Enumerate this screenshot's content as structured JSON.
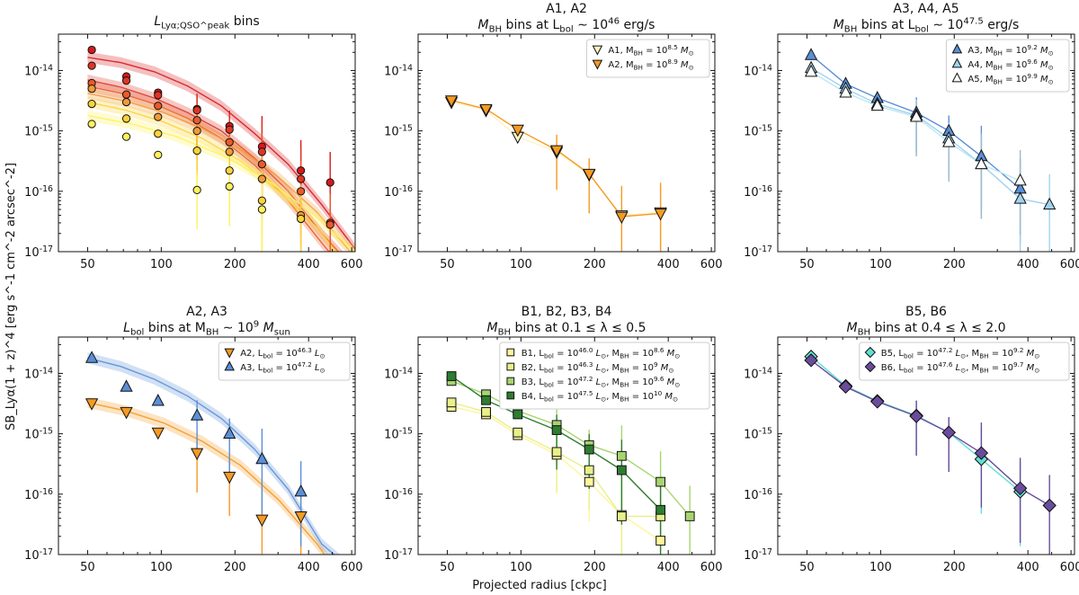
{
  "figure": {
    "ylabel": "SB_Lyα(1 + z)^4 [erg s^-1 cm^-2 arcsec^-2]",
    "xlabel": "Projected radius [ckpc]"
  },
  "chart_data": [
    {
      "type": "line",
      "title": [
        "L_Lyα;QSO^peak bins"
      ],
      "xscale": "log",
      "yscale": "log",
      "xlim": [
        38,
        620
      ],
      "ylim": [
        1e-17,
        4e-14
      ],
      "xticks": [
        "50",
        "100",
        "200",
        "400",
        "600"
      ],
      "yticks": [
        "10^-17",
        "10^-16",
        "10^-15",
        "10^-14"
      ],
      "legend": [],
      "series": [
        {
          "color": "#d7191c",
          "marker": "circle",
          "x": [
            52,
            72,
            97,
            140,
            190,
            258,
            372,
            490
          ],
          "y": [
            2.2e-14,
            8e-15,
            4.3e-15,
            2.3e-15,
            1.2e-15,
            5.5e-16,
            2.2e-16,
            1.4e-16
          ],
          "model": [
            1.65e-14,
            1.35e-14,
            9.5e-15,
            5.5e-15,
            2.6e-15,
            9e-16,
            2.8e-16,
            6e-17,
            1.1e-17
          ]
        },
        {
          "color": "#e03524",
          "marker": "circle",
          "x": [
            52,
            72,
            97,
            140,
            190,
            258,
            372,
            490
          ],
          "y": [
            1.2e-14,
            6.8e-15,
            3.9e-15,
            2.2e-15,
            1.05e-15,
            4.5e-16,
            1.6e-16,
            3e-17
          ],
          "model": [
            7e-15,
            5.3e-15,
            3.5e-15,
            2e-15,
            1e-15,
            3.5e-16,
            1e-16,
            2e-17,
            5e-18
          ]
        },
        {
          "color": "#ea5a2a",
          "marker": "circle",
          "x": [
            52,
            72,
            97,
            140,
            190,
            258,
            372,
            490
          ],
          "y": [
            6.2e-15,
            4e-15,
            2.6e-15,
            1.5e-15,
            6.5e-16,
            2.8e-16,
            1e-16,
            2.8e-17
          ],
          "model": [
            5.5e-15,
            4.2e-15,
            2.8e-15,
            1.6e-15,
            7.5e-16,
            2.7e-16,
            7e-17,
            1.4e-17,
            3e-18
          ]
        },
        {
          "color": "#f29a3a",
          "marker": "circle",
          "x": [
            52,
            72,
            97,
            140,
            190,
            258,
            372
          ],
          "y": [
            5e-15,
            3e-15,
            1.7e-15,
            1e-15,
            4.5e-16,
            1.6e-16,
            4e-17
          ],
          "model": [
            4.2e-15,
            3.1e-15,
            2e-15,
            1.1e-15,
            5e-16,
            1.7e-16,
            4.5e-17,
            8e-18
          ]
        },
        {
          "color": "#fcd33a",
          "marker": "circle",
          "x": [
            52,
            72,
            97,
            140,
            190,
            258,
            372
          ],
          "y": [
            2.8e-15,
            1.6e-15,
            9e-16,
            4.7e-16,
            2.2e-16,
            7e-17,
            3.5e-17
          ],
          "model": [
            3e-15,
            2.2e-15,
            1.4e-15,
            7.5e-16,
            3.2e-16,
            1e-16,
            2.5e-17,
            4e-18
          ]
        },
        {
          "color": "#fff25a",
          "marker": "circle",
          "x": [
            52,
            72,
            97,
            140,
            190,
            258
          ],
          "y": [
            1.3e-15,
            8e-16,
            4e-16,
            1.05e-16,
            1.2e-16,
            5e-17
          ],
          "model": [
            1.8e-15,
            1.3e-15,
            8e-16,
            4e-16,
            1.6e-16,
            4.5e-17,
            1e-17
          ]
        }
      ]
    },
    {
      "type": "line",
      "title": [
        "A1, A2",
        "M_BH bins at L_bol ~ 10^46 erg/s"
      ],
      "xscale": "log",
      "yscale": "log",
      "xlim": [
        38,
        620
      ],
      "ylim": [
        1e-17,
        4e-14
      ],
      "xticks": [
        "50",
        "100",
        "200",
        "400",
        "600"
      ],
      "yticks": [
        "10^-17",
        "10^-16",
        "10^-15",
        "10^-14"
      ],
      "legend": [
        {
          "label": "A1, M_BH = 10^8.5 M_⊙",
          "color": "#fff3c4",
          "marker": "triangle-down"
        },
        {
          "label": "A2, M_BH = 10^8.9 M_⊙",
          "color": "#f59a23",
          "marker": "triangle-down"
        }
      ],
      "series": [
        {
          "color": "#fff3c4",
          "marker": "triangle-down",
          "x": [
            52,
            72,
            97,
            140,
            190,
            258,
            372
          ],
          "y": [
            3e-15,
            2.2e-15,
            8e-16,
            4.5e-16,
            1.9e-16,
            4e-17,
            4.5e-17
          ]
        },
        {
          "color": "#f59a23",
          "marker": "triangle-down",
          "x": [
            52,
            72,
            97,
            140,
            190,
            258,
            372
          ],
          "y": [
            3.2e-15,
            2.3e-15,
            1.05e-15,
            4.8e-16,
            1.95e-16,
            3.8e-17,
            4.3e-17
          ]
        }
      ]
    },
    {
      "type": "line",
      "title": [
        "A3, A4, A5",
        "M_BH bins at L_bol ~ 10^47.5 erg/s"
      ],
      "xscale": "log",
      "yscale": "log",
      "xlim": [
        38,
        620
      ],
      "ylim": [
        1e-17,
        4e-14
      ],
      "xticks": [
        "50",
        "100",
        "200",
        "400",
        "600"
      ],
      "yticks": [
        "10^-17",
        "10^-16",
        "10^-15",
        "10^-14"
      ],
      "legend": [
        {
          "label": "A3, M_BH = 10^9.2 M_⊙",
          "color": "#5b8fd6",
          "marker": "triangle"
        },
        {
          "label": "A4, M_BH = 10^9.6 M_⊙",
          "color": "#9fd3ee",
          "marker": "triangle"
        },
        {
          "label": "A5, M_BH = 10^9.9 M_⊙",
          "color": "#ffffff",
          "marker": "triangle"
        }
      ],
      "series": [
        {
          "color": "#5b8fd6",
          "marker": "triangle",
          "x": [
            52,
            72,
            97,
            140,
            190,
            258,
            372
          ],
          "y": [
            1.8e-14,
            6e-15,
            3.5e-15,
            2e-15,
            1e-15,
            3.8e-16,
            1.1e-16
          ]
        },
        {
          "color": "#9fd3ee",
          "marker": "triangle",
          "x": [
            52,
            72,
            97,
            140,
            190,
            258,
            372,
            490
          ],
          "y": [
            1.1e-14,
            5e-15,
            2.8e-15,
            1.8e-15,
            7.5e-16,
            2.8e-16,
            7.5e-17,
            6e-17
          ]
        },
        {
          "color": "#ffffff",
          "marker": "triangle",
          "x": [
            52,
            72,
            97,
            140,
            190,
            258,
            372
          ],
          "y": [
            9.5e-15,
            4.3e-15,
            2.6e-15,
            1.7e-15,
            6.5e-16,
            2.8e-16,
            1.5e-16
          ]
        }
      ]
    },
    {
      "type": "line",
      "title": [
        "A2, A3",
        "L_bol bins at M_BH ~ 10^9 M_sun"
      ],
      "xscale": "log",
      "yscale": "log",
      "xlim": [
        38,
        620
      ],
      "ylim": [
        1e-17,
        4e-14
      ],
      "xticks": [
        "50",
        "100",
        "200",
        "400",
        "600"
      ],
      "yticks": [
        "10^-17",
        "10^-16",
        "10^-15",
        "10^-14"
      ],
      "legend": [
        {
          "label": "A2, L_bol = 10^46.3 L_⊙",
          "color": "#f59a23",
          "marker": "triangle-down"
        },
        {
          "label": "A3, L_bol = 10^47.2 L_⊙",
          "color": "#5b8fd6",
          "marker": "triangle"
        }
      ],
      "series": [
        {
          "color": "#f59a23",
          "marker": "triangle-down",
          "x": [
            52,
            72,
            97,
            140,
            190,
            258,
            372
          ],
          "y": [
            3.2e-15,
            2.3e-15,
            1.05e-15,
            4.8e-16,
            1.95e-16,
            3.8e-17,
            4.3e-17
          ],
          "model": [
            3.3e-15,
            2.4e-15,
            1.5e-15,
            7.5e-16,
            3e-16,
            8e-17,
            1.5e-17,
            2e-18
          ]
        },
        {
          "color": "#5b8fd6",
          "marker": "triangle",
          "x": [
            52,
            72,
            97,
            140,
            190,
            258,
            372
          ],
          "y": [
            1.8e-14,
            6e-15,
            3.5e-15,
            2e-15,
            1e-15,
            3.8e-16,
            1.1e-16
          ],
          "model": [
            1.8e-14,
            1.3e-14,
            8e-15,
            4.2e-15,
            1.8e-15,
            5.5e-16,
            1.2e-16,
            1.5e-17,
            5e-18
          ]
        }
      ]
    },
    {
      "type": "line",
      "title": [
        "B1, B2, B3, B4",
        "M_BH bins at 0.1 ≤ λ ≤ 0.5"
      ],
      "xscale": "log",
      "yscale": "log",
      "xlim": [
        38,
        620
      ],
      "ylim": [
        1e-17,
        4e-14
      ],
      "xticks": [
        "50",
        "100",
        "200",
        "400",
        "600"
      ],
      "yticks": [
        "10^-17",
        "10^-16",
        "10^-15",
        "10^-14"
      ],
      "legend": [
        {
          "label": "B1, L_bol = 10^46.0 L_⊙, M_BH = 10^8.6 M_⊙",
          "color": "#fff59a",
          "marker": "square"
        },
        {
          "label": "B2, L_bol = 10^46.3 L_⊙, M_BH = 10^9 M_⊙",
          "color": "#e8f08a",
          "marker": "square"
        },
        {
          "label": "B3, L_bol = 10^47.2 L_⊙, M_BH = 10^9.6 M_⊙",
          "color": "#a8d46f",
          "marker": "square"
        },
        {
          "label": "B4, L_bol = 10^47.5 L_⊙, M_BH = 10^10 M_⊙",
          "color": "#2e7d32",
          "marker": "square"
        }
      ],
      "series": [
        {
          "color": "#fff59a",
          "marker": "square",
          "x": [
            52,
            72,
            97,
            140,
            190,
            258,
            372
          ],
          "y": [
            2.8e-15,
            2.1e-15,
            9.5e-16,
            4.5e-16,
            1.6e-16,
            4.5e-17,
            1.7e-17
          ]
        },
        {
          "color": "#e8f08a",
          "marker": "square",
          "x": [
            52,
            72,
            97,
            140,
            190,
            258,
            372
          ],
          "y": [
            3.3e-15,
            2.3e-15,
            1.05e-15,
            5e-16,
            2.5e-16,
            4.3e-17,
            4.3e-17
          ]
        },
        {
          "color": "#a8d46f",
          "marker": "square",
          "x": [
            52,
            72,
            97,
            140,
            190,
            258,
            372,
            490
          ],
          "y": [
            7.5e-15,
            4.5e-15,
            2.4e-15,
            1.4e-15,
            6.5e-16,
            4.3e-16,
            1.6e-16,
            4.3e-17
          ]
        },
        {
          "color": "#2e7d32",
          "marker": "square",
          "x": [
            52,
            72,
            97,
            140,
            190,
            258,
            372
          ],
          "y": [
            9e-15,
            3.6e-15,
            2.1e-15,
            1.15e-15,
            5.5e-16,
            2.5e-16,
            5.5e-17
          ]
        }
      ]
    },
    {
      "type": "line",
      "title": [
        "B5, B6",
        "M_BH bins at 0.4 ≤ λ ≤ 2.0"
      ],
      "xscale": "log",
      "yscale": "log",
      "xlim": [
        38,
        620
      ],
      "ylim": [
        1e-17,
        4e-14
      ],
      "xticks": [
        "50",
        "100",
        "200",
        "400",
        "600"
      ],
      "yticks": [
        "10^-17",
        "10^-16",
        "10^-15",
        "10^-14"
      ],
      "legend": [
        {
          "label": "B5, L_bol = 10^47.2 L_⊙, M_BH = 10^9.2 M_⊙",
          "color": "#5fe0d0",
          "marker": "diamond"
        },
        {
          "label": "B6, L_bol = 10^47.6 L_⊙, M_BH = 10^9.7 M_⊙",
          "color": "#6a4c9c",
          "marker": "diamond"
        }
      ],
      "series": [
        {
          "color": "#5fe0d0",
          "marker": "diamond",
          "x": [
            52,
            72,
            97,
            140,
            190,
            258,
            372
          ],
          "y": [
            1.9e-14,
            6.2e-15,
            3.5e-15,
            2e-15,
            1.05e-15,
            3.8e-16,
            1.1e-16
          ]
        },
        {
          "color": "#6a4c9c",
          "marker": "diamond",
          "x": [
            52,
            72,
            97,
            140,
            190,
            258,
            372,
            490
          ],
          "y": [
            1.65e-14,
            6e-15,
            3.4e-15,
            1.95e-15,
            1.05e-15,
            4.8e-16,
            1.25e-16,
            6.5e-17
          ]
        }
      ]
    }
  ]
}
